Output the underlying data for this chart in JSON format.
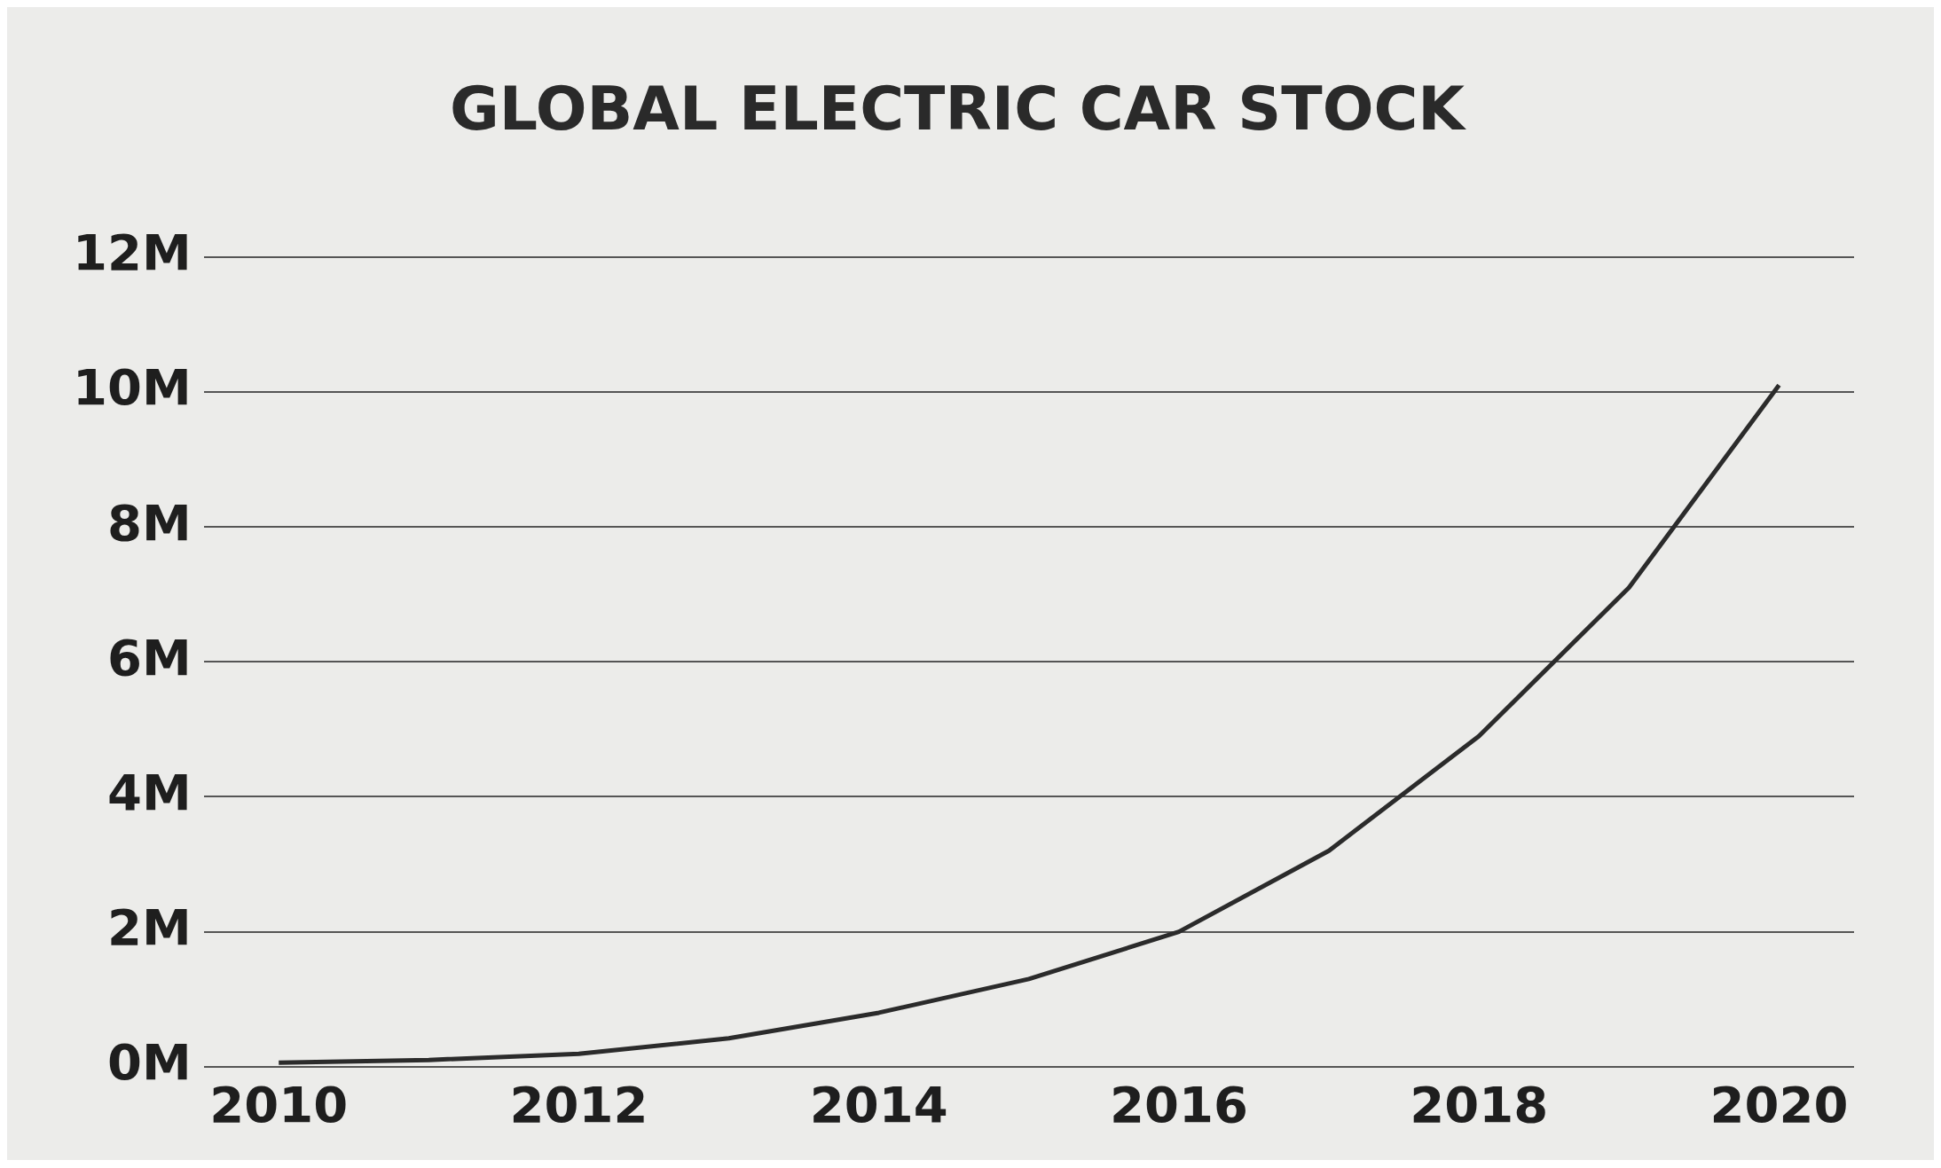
{
  "chart_data": {
    "type": "line",
    "title": "GLOBAL ELECTRIC CAR STOCK",
    "x": [
      2010,
      2011,
      2012,
      2013,
      2014,
      2015,
      2016,
      2017,
      2018,
      2019,
      2020
    ],
    "series": [
      {
        "color": "#2b2b2b",
        "values": [
          0.06,
          0.1,
          0.19,
          0.42,
          0.8,
          1.3,
          2.0,
          3.2,
          4.9,
          7.1,
          10.1
        ]
      }
    ],
    "xlim": [
      2009.5,
      2020.5
    ],
    "xticks": [
      2010,
      2012,
      2014,
      2016,
      2018,
      2020
    ],
    "ylim": [
      0,
      12
    ],
    "yticks": [
      {
        "value": 0,
        "label": "0M"
      },
      {
        "value": 2,
        "label": "2M"
      },
      {
        "value": 4,
        "label": "4M"
      },
      {
        "value": 6,
        "label": "6M"
      },
      {
        "value": 8,
        "label": "8M"
      },
      {
        "value": 10,
        "label": "10M"
      },
      {
        "value": 12,
        "label": "12M"
      }
    ],
    "grid": "y",
    "legend": false,
    "marker": "none",
    "line_style": "solid"
  }
}
